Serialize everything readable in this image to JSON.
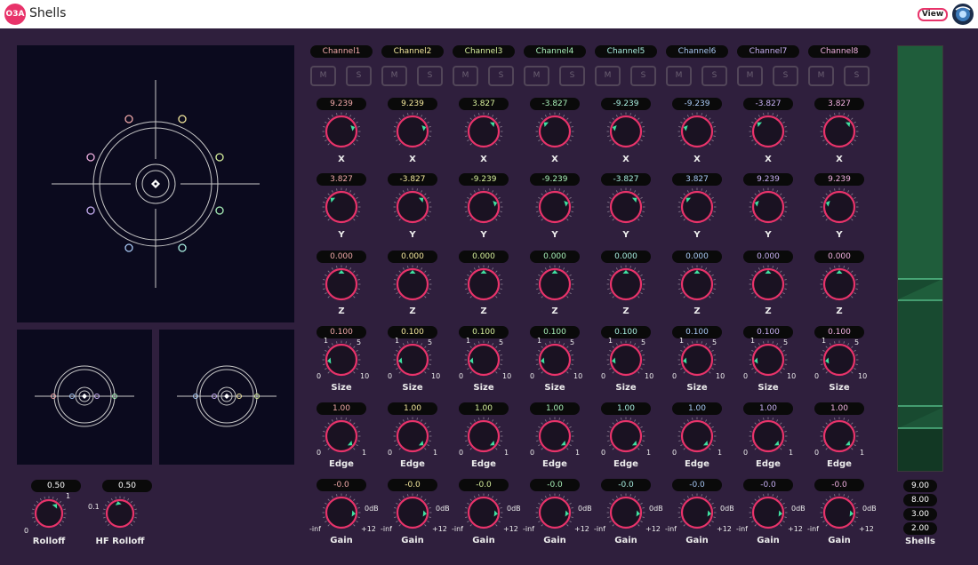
{
  "app": {
    "logo": "O3A",
    "title": "Shells",
    "view_label": "View"
  },
  "channels": [
    {
      "name": "Channel1",
      "color": "#f0a8a8",
      "x": "9.239",
      "y": "3.827",
      "z": "0.000",
      "size": "0.100",
      "edge": "1.00",
      "gain": "-0.0"
    },
    {
      "name": "Channel2",
      "color": "#f3e79c",
      "x": "9.239",
      "y": "-3.827",
      "z": "0.000",
      "size": "0.100",
      "edge": "1.00",
      "gain": "-0.0"
    },
    {
      "name": "Channel3",
      "color": "#d7f09c",
      "x": "3.827",
      "y": "-9.239",
      "z": "0.000",
      "size": "0.100",
      "edge": "1.00",
      "gain": "-0.0"
    },
    {
      "name": "Channel4",
      "color": "#a8f0b8",
      "x": "-3.827",
      "y": "-9.239",
      "z": "0.000",
      "size": "0.100",
      "edge": "1.00",
      "gain": "-0.0"
    },
    {
      "name": "Channel5",
      "color": "#a8eee0",
      "x": "-9.239",
      "y": "-3.827",
      "z": "0.000",
      "size": "0.100",
      "edge": "1.00",
      "gain": "-0.0"
    },
    {
      "name": "Channel6",
      "color": "#a8c8f4",
      "x": "-9.239",
      "y": "3.827",
      "z": "0.000",
      "size": "0.100",
      "edge": "1.00",
      "gain": "-0.0"
    },
    {
      "name": "Channel7",
      "color": "#c8b0f4",
      "x": "-3.827",
      "y": "9.239",
      "z": "0.000",
      "size": "0.100",
      "edge": "1.00",
      "gain": "-0.0"
    },
    {
      "name": "Channel8",
      "color": "#f0b0e0",
      "x": "3.827",
      "y": "9.239",
      "z": "0.000",
      "size": "0.100",
      "edge": "1.00",
      "gain": "-0.0"
    }
  ],
  "buttons": {
    "mute": "M",
    "solo": "S"
  },
  "labels": {
    "x": "X",
    "y": "Y",
    "z": "Z",
    "size": "Size",
    "edge": "Edge",
    "gain": "Gain"
  },
  "scales": {
    "size_1": "1",
    "size_5": "5",
    "size_0": "0",
    "size_10": "10",
    "edge_0": "0",
    "edge_1": "1",
    "gain_top": "0dB",
    "gain_min": "-inf",
    "gain_max": "+12"
  },
  "rolloff": {
    "label": "Rolloff",
    "value": "0.50",
    "min": "0",
    "max": "1"
  },
  "hf_rolloff": {
    "label": "HF Rolloff",
    "value": "0.50",
    "min": "0.1"
  },
  "shells": {
    "label": "Shells",
    "values": [
      "9.00",
      "8.00",
      "3.00",
      "2.00"
    ]
  },
  "colors": {
    "accent": "#e8336a",
    "indicator": "#3fe0a0",
    "background": "#2f1f3d",
    "panel": "#0b0a1e",
    "meter": "#1e5c3a"
  }
}
